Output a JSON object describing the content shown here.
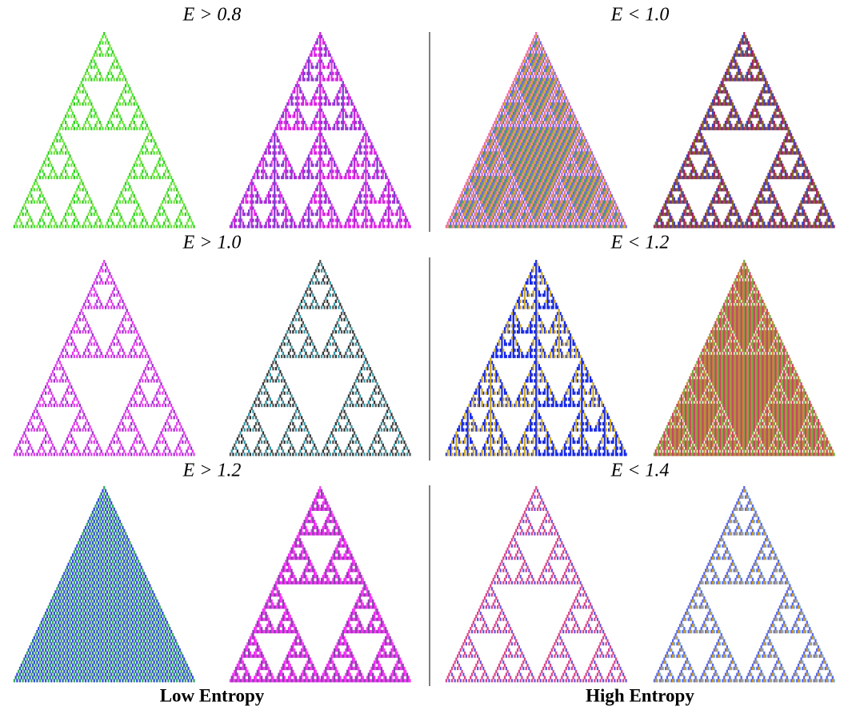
{
  "columns": [
    {
      "caption": "Low Entropy",
      "rows": [
        {
          "label": "E > 0.8"
        },
        {
          "label": "E > 1.0"
        },
        {
          "label": "E > 1.2"
        }
      ]
    },
    {
      "caption": "High Entropy",
      "rows": [
        {
          "label": "E < 1.0"
        },
        {
          "label": "E < 1.2"
        },
        {
          "label": "E < 1.4"
        }
      ]
    }
  ]
}
